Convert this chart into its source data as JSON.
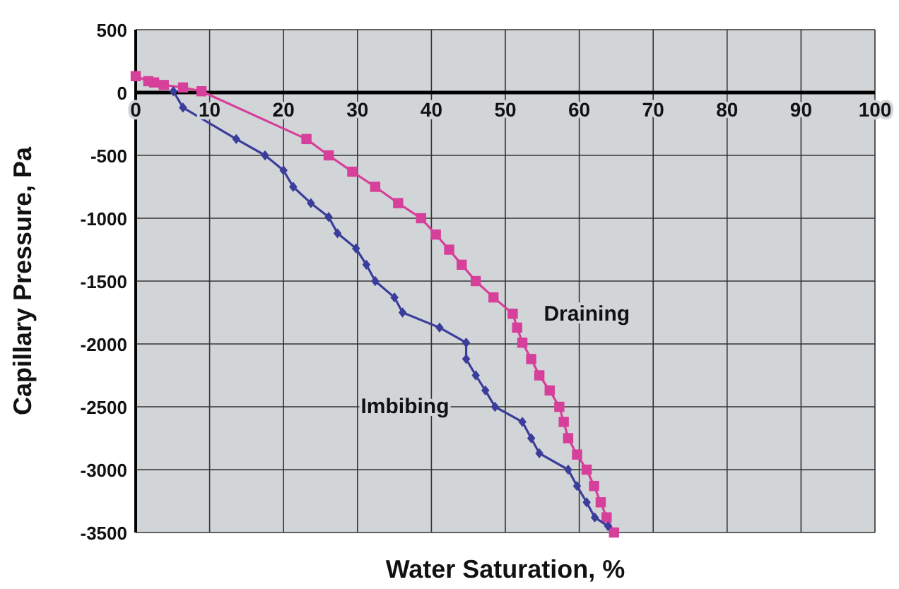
{
  "chart_data": {
    "type": "line",
    "xlabel": "Water Saturation, %",
    "ylabel": "Capillary Pressure, Pa",
    "xlim": [
      0,
      100
    ],
    "ylim": [
      -3500,
      500
    ],
    "xticks": [
      0,
      10,
      20,
      30,
      40,
      50,
      60,
      70,
      80,
      90,
      100
    ],
    "yticks": [
      500,
      0,
      -500,
      -1000,
      -1500,
      -2000,
      -2500,
      -3000,
      -3500
    ],
    "grid": true,
    "line_style": "solid",
    "series": [
      {
        "name": "Draining",
        "color": "#d63f9a",
        "marker": "square",
        "x": [
          0,
          1.7,
          2.5,
          3.8,
          6.4,
          8.9,
          23.1,
          26.1,
          29.3,
          32.4,
          35.5,
          38.6,
          40.6,
          42.4,
          44.1,
          46,
          48.4,
          51,
          51.6,
          52.3,
          53.5,
          54.6,
          56,
          57.3,
          57.9,
          58.5,
          59.7,
          61,
          62,
          62.9,
          63.7,
          64.7
        ],
        "values": [
          130,
          90,
          80,
          60,
          40,
          10,
          -370,
          -500,
          -630,
          -750,
          -880,
          -1000,
          -1130,
          -1250,
          -1370,
          -1500,
          -1630,
          -1760,
          -1870,
          -1990,
          -2120,
          -2250,
          -2370,
          -2500,
          -2620,
          -2750,
          -2880,
          -3000,
          -3130,
          -3260,
          -3380,
          -3500
        ]
      },
      {
        "name": "Imbibing",
        "color": "#3b3d9a",
        "marker": "diamond",
        "x": [
          5.1,
          6.4,
          13.6,
          17.5,
          20,
          21.3,
          23.7,
          26.1,
          27.3,
          29.8,
          31.2,
          32.4,
          35,
          36.1,
          41.1,
          44.7,
          44.7,
          46,
          47.3,
          48.6,
          52.3,
          53.5,
          54.6,
          58.5,
          59.7,
          61,
          62.1,
          63.9
        ],
        "values": [
          10,
          -120,
          -370,
          -500,
          -620,
          -750,
          -880,
          -990,
          -1120,
          -1240,
          -1370,
          -1500,
          -1630,
          -1750,
          -1870,
          -1990,
          -2120,
          -2250,
          -2370,
          -2500,
          -2620,
          -2750,
          -2870,
          -3000,
          -3130,
          -3260,
          -3380,
          -3450
        ]
      }
    ]
  }
}
